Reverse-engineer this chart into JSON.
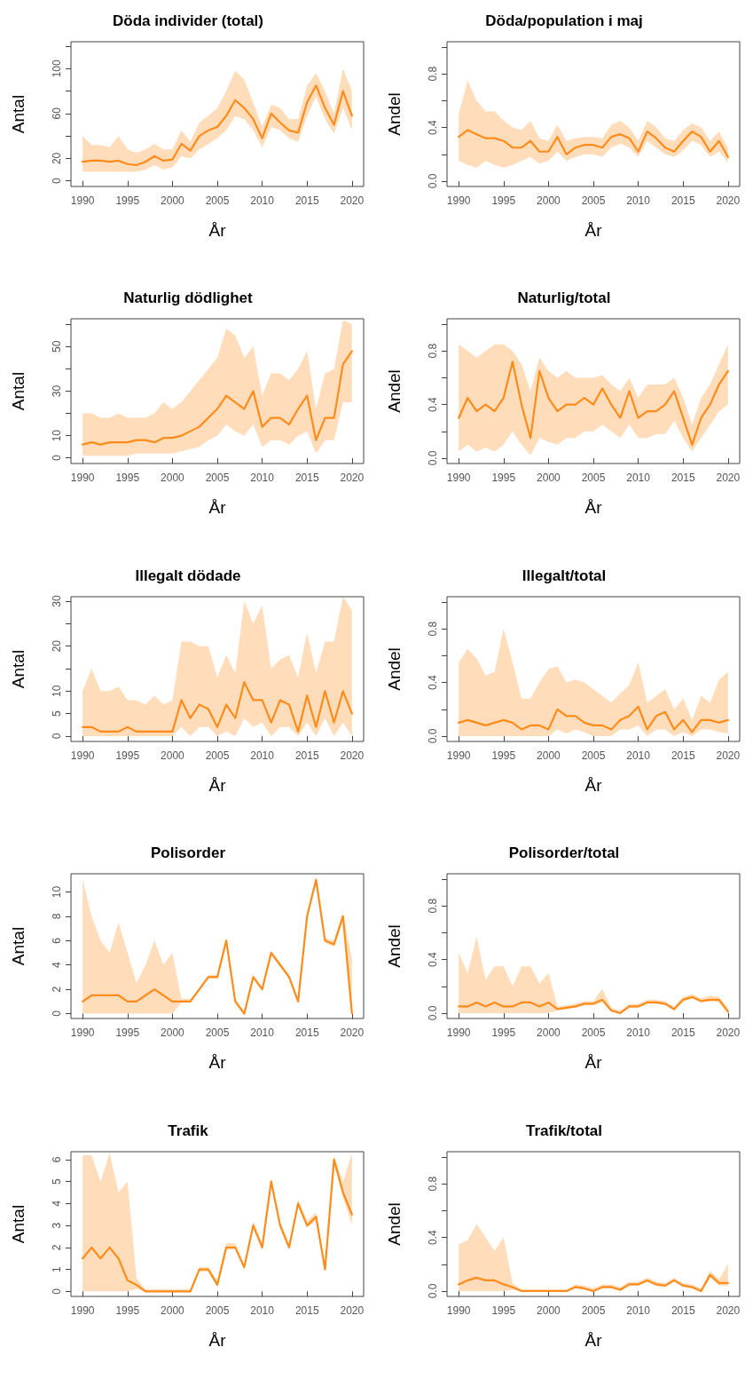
{
  "chart_data": [
    {
      "type": "line",
      "title": "Döda individer (total)",
      "xlabel": "År",
      "ylabel": "Antal",
      "x": [
        1990,
        1991,
        1992,
        1993,
        1994,
        1995,
        1996,
        1997,
        1998,
        1999,
        2000,
        2001,
        2002,
        2003,
        2004,
        2005,
        2006,
        2007,
        2008,
        2009,
        2010,
        2011,
        2012,
        2013,
        2014,
        2015,
        2016,
        2017,
        2018,
        2019,
        2020
      ],
      "xlim": [
        1988.7,
        2021.3
      ],
      "xticks": [
        1990,
        1995,
        2000,
        2005,
        2010,
        2015,
        2020
      ],
      "ylim": [
        -5,
        124
      ],
      "yticks": [
        0,
        20,
        {
          "value": 40,
          "label": null
        },
        60,
        {
          "value": 80,
          "label": null
        },
        100,
        {
          "value": 120,
          "label": null
        }
      ],
      "series": [
        {
          "color": "#ff8c1a",
          "values": [
            17,
            18,
            18,
            17,
            18,
            15,
            14,
            17,
            22,
            18,
            19,
            33,
            27,
            40,
            45,
            48,
            58,
            72,
            65,
            55,
            38,
            60,
            52,
            45,
            43,
            70,
            85,
            65,
            50,
            80,
            58
          ],
          "lower": [
            8,
            8,
            8,
            8,
            8,
            8,
            8,
            10,
            14,
            10,
            12,
            22,
            20,
            28,
            33,
            38,
            45,
            58,
            55,
            45,
            30,
            48,
            45,
            38,
            35,
            58,
            75,
            55,
            42,
            65,
            45
          ],
          "upper": [
            40,
            32,
            32,
            30,
            40,
            28,
            25,
            28,
            33,
            28,
            28,
            45,
            35,
            52,
            58,
            65,
            80,
            98,
            90,
            70,
            48,
            68,
            65,
            55,
            55,
            85,
            96,
            80,
            60,
            100,
            80
          ]
        }
      ]
    },
    {
      "type": "line",
      "title": "Döda/population i maj",
      "xlabel": "År",
      "ylabel": "Andel",
      "x": [
        1990,
        1991,
        1992,
        1993,
        1994,
        1995,
        1996,
        1997,
        1998,
        1999,
        2000,
        2001,
        2002,
        2003,
        2004,
        2005,
        2006,
        2007,
        2008,
        2009,
        2010,
        2011,
        2012,
        2013,
        2014,
        2015,
        2016,
        2017,
        2018,
        2019,
        2020
      ],
      "xlim": [
        1988.7,
        2021.3
      ],
      "xticks": [
        1990,
        1995,
        2000,
        2005,
        2010,
        2015,
        2020
      ],
      "ylim": [
        -0.04,
        1.04
      ],
      "yticks": [
        {
          "value": 0,
          "label": "0.0"
        },
        {
          "value": 0.2,
          "label": null
        },
        0.4,
        {
          "value": 0.6,
          "label": null
        },
        0.8,
        {
          "value": 1,
          "label": null
        }
      ],
      "series": [
        {
          "color": "#ff8c1a",
          "values": [
            0.33,
            0.38,
            0.35,
            0.32,
            0.32,
            0.3,
            0.25,
            0.25,
            0.3,
            0.22,
            0.22,
            0.33,
            0.2,
            0.25,
            0.27,
            0.27,
            0.25,
            0.33,
            0.35,
            0.32,
            0.22,
            0.37,
            0.32,
            0.25,
            0.22,
            0.3,
            0.37,
            0.33,
            0.22,
            0.3,
            0.18
          ],
          "lower": [
            0.15,
            0.12,
            0.1,
            0.15,
            0.12,
            0.1,
            0.12,
            0.15,
            0.18,
            0.13,
            0.15,
            0.22,
            0.15,
            0.18,
            0.2,
            0.2,
            0.18,
            0.25,
            0.28,
            0.25,
            0.18,
            0.3,
            0.25,
            0.2,
            0.18,
            0.23,
            0.3,
            0.27,
            0.18,
            0.22,
            0.14
          ],
          "upper": [
            0.5,
            0.75,
            0.6,
            0.52,
            0.52,
            0.45,
            0.4,
            0.38,
            0.45,
            0.32,
            0.3,
            0.42,
            0.3,
            0.32,
            0.33,
            0.33,
            0.32,
            0.42,
            0.45,
            0.4,
            0.3,
            0.45,
            0.4,
            0.32,
            0.3,
            0.38,
            0.43,
            0.4,
            0.3,
            0.37,
            0.25
          ]
        }
      ]
    },
    {
      "type": "line",
      "title": "Naturlig dödlighet",
      "xlabel": "År",
      "ylabel": "Antal",
      "x": [
        1990,
        1991,
        1992,
        1993,
        1994,
        1995,
        1996,
        1997,
        1998,
        1999,
        2000,
        2001,
        2002,
        2003,
        2004,
        2005,
        2006,
        2007,
        2008,
        2009,
        2010,
        2011,
        2012,
        2013,
        2014,
        2015,
        2016,
        2017,
        2018,
        2019,
        2020
      ],
      "xlim": [
        1988.7,
        2021.3
      ],
      "xticks": [
        1990,
        1995,
        2000,
        2005,
        2010,
        2015,
        2020
      ],
      "ylim": [
        -2.5,
        62.5
      ],
      "yticks": [
        0,
        10,
        {
          "value": 20,
          "label": null
        },
        30,
        {
          "value": 40,
          "label": null
        },
        50,
        {
          "value": 60,
          "label": null
        }
      ],
      "series": [
        {
          "color": "#ff8c1a",
          "values": [
            6,
            7,
            6,
            7,
            7,
            7,
            8,
            8,
            7,
            9,
            9,
            10,
            12,
            14,
            18,
            22,
            28,
            25,
            22,
            30,
            14,
            18,
            18,
            15,
            22,
            28,
            8,
            18,
            18,
            42,
            48
          ],
          "lower": [
            1,
            1,
            1,
            1,
            1,
            1,
            2,
            2,
            2,
            2,
            2,
            3,
            4,
            5,
            8,
            10,
            15,
            12,
            10,
            15,
            5,
            8,
            8,
            6,
            10,
            12,
            2,
            8,
            8,
            25,
            25
          ],
          "upper": [
            20,
            20,
            18,
            18,
            20,
            18,
            18,
            18,
            20,
            25,
            22,
            25,
            30,
            35,
            40,
            45,
            58,
            55,
            45,
            50,
            28,
            38,
            38,
            35,
            40,
            48,
            22,
            38,
            40,
            62,
            60
          ]
        }
      ]
    },
    {
      "type": "line",
      "title": "Naturlig/total",
      "xlabel": "År",
      "ylabel": "Andel",
      "x": [
        1990,
        1991,
        1992,
        1993,
        1994,
        1995,
        1996,
        1997,
        1998,
        1999,
        2000,
        2001,
        2002,
        2003,
        2004,
        2005,
        2006,
        2007,
        2008,
        2009,
        2010,
        2011,
        2012,
        2013,
        2014,
        2015,
        2016,
        2017,
        2018,
        2019,
        2020
      ],
      "xlim": [
        1988.7,
        2021.3
      ],
      "xticks": [
        1990,
        1995,
        2000,
        2005,
        2010,
        2015,
        2020
      ],
      "ylim": [
        -0.04,
        1.04
      ],
      "yticks": [
        {
          "value": 0,
          "label": "0.0"
        },
        {
          "value": 0.2,
          "label": null
        },
        0.4,
        {
          "value": 0.6,
          "label": null
        },
        0.8,
        {
          "value": 1,
          "label": null
        }
      ],
      "series": [
        {
          "color": "#ff8c1a",
          "values": [
            0.3,
            0.45,
            0.35,
            0.4,
            0.35,
            0.45,
            0.72,
            0.4,
            0.15,
            0.65,
            0.45,
            0.35,
            0.4,
            0.4,
            0.45,
            0.4,
            0.52,
            0.4,
            0.3,
            0.5,
            0.3,
            0.35,
            0.35,
            0.4,
            0.5,
            0.3,
            0.1,
            0.3,
            0.4,
            0.55,
            0.65
          ],
          "lower": [
            0.05,
            0.1,
            0.05,
            0.08,
            0.05,
            0.1,
            0.2,
            0.1,
            0.02,
            0.15,
            0.12,
            0.1,
            0.15,
            0.15,
            0.2,
            0.2,
            0.25,
            0.2,
            0.15,
            0.25,
            0.15,
            0.15,
            0.18,
            0.18,
            0.28,
            0.15,
            0.05,
            0.15,
            0.25,
            0.35,
            0.4
          ],
          "upper": [
            0.85,
            0.8,
            0.75,
            0.8,
            0.85,
            0.85,
            0.8,
            0.7,
            0.5,
            0.75,
            0.65,
            0.6,
            0.65,
            0.6,
            0.6,
            0.6,
            0.62,
            0.55,
            0.5,
            0.6,
            0.45,
            0.55,
            0.55,
            0.55,
            0.6,
            0.45,
            0.25,
            0.45,
            0.55,
            0.7,
            0.85
          ]
        }
      ]
    },
    {
      "type": "line",
      "title": "Illegalt dödade",
      "xlabel": "År",
      "ylabel": "Antal",
      "x": [
        1990,
        1991,
        1992,
        1993,
        1994,
        1995,
        1996,
        1997,
        1998,
        1999,
        2000,
        2001,
        2002,
        2003,
        2004,
        2005,
        2006,
        2007,
        2008,
        2009,
        2010,
        2011,
        2012,
        2013,
        2014,
        2015,
        2016,
        2017,
        2018,
        2019,
        2020
      ],
      "xlim": [
        1988.7,
        2021.3
      ],
      "xticks": [
        1990,
        1995,
        2000,
        2005,
        2010,
        2015,
        2020
      ],
      "ylim": [
        -1.2,
        31
      ],
      "yticks": [
        0,
        5,
        10,
        {
          "value": 15,
          "label": null
        },
        20,
        {
          "value": 25,
          "label": null
        },
        30
      ],
      "series": [
        {
          "color": "#ff8c1a",
          "values": [
            2,
            2,
            1,
            1,
            1,
            2,
            1,
            1,
            1,
            1,
            1,
            8,
            4,
            7,
            6,
            2,
            7,
            4,
            12,
            8,
            8,
            3,
            8,
            7,
            1,
            9,
            2,
            10,
            3,
            10,
            5
          ],
          "lower": [
            0,
            0,
            0,
            0,
            0,
            0,
            0,
            0,
            0,
            0,
            0,
            2,
            0,
            2,
            2,
            0,
            1,
            0,
            4,
            2,
            3,
            0,
            2,
            2,
            0,
            3,
            0,
            4,
            0,
            3,
            0
          ],
          "upper": [
            10,
            15,
            10,
            10,
            11,
            8,
            8,
            7,
            9,
            7,
            8,
            21,
            21,
            20,
            20,
            13,
            18,
            14,
            30,
            25,
            29,
            15,
            17,
            18,
            13,
            23,
            14,
            21,
            21,
            31,
            28
          ]
        }
      ]
    },
    {
      "type": "line",
      "title": "Illegalt/total",
      "xlabel": "År",
      "ylabel": "Andel",
      "x": [
        1990,
        1991,
        1992,
        1993,
        1994,
        1995,
        1996,
        1997,
        1998,
        1999,
        2000,
        2001,
        2002,
        2003,
        2004,
        2005,
        2006,
        2007,
        2008,
        2009,
        2010,
        2011,
        2012,
        2013,
        2014,
        2015,
        2016,
        2017,
        2018,
        2019,
        2020
      ],
      "xlim": [
        1988.7,
        2021.3
      ],
      "xticks": [
        1990,
        1995,
        2000,
        2005,
        2010,
        2015,
        2020
      ],
      "ylim": [
        -0.04,
        1.04
      ],
      "yticks": [
        {
          "value": 0,
          "label": "0.0"
        },
        {
          "value": 0.2,
          "label": null
        },
        0.4,
        {
          "value": 0.6,
          "label": null
        },
        0.8,
        {
          "value": 1,
          "label": null
        }
      ],
      "series": [
        {
          "color": "#ff8c1a",
          "values": [
            0.1,
            0.12,
            0.1,
            0.08,
            0.1,
            0.12,
            0.1,
            0.05,
            0.08,
            0.08,
            0.05,
            0.2,
            0.15,
            0.15,
            0.1,
            0.08,
            0.08,
            0.05,
            0.12,
            0.15,
            0.22,
            0.05,
            0.15,
            0.18,
            0.05,
            0.12,
            0.03,
            0.12,
            0.12,
            0.1,
            0.12
          ],
          "lower": [
            0,
            0,
            0,
            0,
            0,
            0,
            0,
            0,
            0,
            0,
            0,
            0.05,
            0.02,
            0.05,
            0.03,
            0,
            0,
            0,
            0.05,
            0.05,
            0.08,
            0,
            0.05,
            0.05,
            0,
            0.03,
            0,
            0.05,
            0.05,
            0.03,
            0.02
          ],
          "upper": [
            0.55,
            0.65,
            0.58,
            0.45,
            0.48,
            0.8,
            0.55,
            0.28,
            0.28,
            0.4,
            0.5,
            0.52,
            0.4,
            0.42,
            0.4,
            0.35,
            0.3,
            0.25,
            0.32,
            0.38,
            0.55,
            0.25,
            0.3,
            0.35,
            0.2,
            0.28,
            0.12,
            0.3,
            0.25,
            0.42,
            0.48
          ]
        }
      ]
    },
    {
      "type": "line",
      "title": "Polisorder",
      "xlabel": "År",
      "ylabel": "Antal",
      "x": [
        1990,
        1991,
        1992,
        1993,
        1994,
        1995,
        1996,
        1997,
        1998,
        1999,
        2000,
        2001,
        2002,
        2003,
        2004,
        2005,
        2006,
        2007,
        2008,
        2009,
        2010,
        2011,
        2012,
        2013,
        2014,
        2015,
        2016,
        2017,
        2018,
        2019,
        2020
      ],
      "xlim": [
        1988.7,
        2021.3
      ],
      "xticks": [
        1990,
        1995,
        2000,
        2005,
        2010,
        2015,
        2020
      ],
      "ylim": [
        -0.4,
        11.5
      ],
      "yticks": [
        0,
        2,
        4,
        6,
        8,
        10
      ],
      "series": [
        {
          "color": "#ff8c1a",
          "values": [
            1,
            1.5,
            1.5,
            1.5,
            1.5,
            1,
            1,
            1.5,
            2,
            1.5,
            1,
            1,
            1,
            2,
            3,
            3,
            6,
            1,
            0,
            3,
            2,
            5,
            4,
            3,
            1,
            8,
            11,
            6,
            5.7,
            8,
            0
          ],
          "lower": [
            0,
            0,
            0,
            0,
            0,
            0,
            0,
            0,
            0,
            0,
            0,
            0.9,
            0.9,
            1.9,
            2.9,
            2.9,
            5.8,
            0.9,
            0,
            2.9,
            1.9,
            4.8,
            3.9,
            2.9,
            0.9,
            7.8,
            10.8,
            5.8,
            5.5,
            7.7,
            0
          ],
          "upper": [
            11,
            8,
            6,
            5,
            7.5,
            5,
            2.5,
            4,
            6,
            4,
            5,
            1.2,
            1.2,
            2.1,
            3.2,
            3.2,
            6.2,
            1.2,
            0.2,
            3.2,
            2.2,
            5.2,
            4.2,
            3.2,
            1.2,
            8.2,
            11.2,
            6.2,
            6,
            8.3,
            4.5
          ]
        }
      ]
    },
    {
      "type": "line",
      "title": "Polisorder/total",
      "xlabel": "År",
      "ylabel": "Andel",
      "x": [
        1990,
        1991,
        1992,
        1993,
        1994,
        1995,
        1996,
        1997,
        1998,
        1999,
        2000,
        2001,
        2002,
        2003,
        2004,
        2005,
        2006,
        2007,
        2008,
        2009,
        2010,
        2011,
        2012,
        2013,
        2014,
        2015,
        2016,
        2017,
        2018,
        2019,
        2020
      ],
      "xlim": [
        1988.7,
        2021.3
      ],
      "xticks": [
        1990,
        1995,
        2000,
        2005,
        2010,
        2015,
        2020
      ],
      "ylim": [
        -0.04,
        1.04
      ],
      "yticks": [
        {
          "value": 0,
          "label": "0.0"
        },
        {
          "value": 0.2,
          "label": null
        },
        0.4,
        {
          "value": 0.6,
          "label": null
        },
        0.8,
        {
          "value": 1,
          "label": null
        }
      ],
      "series": [
        {
          "color": "#ff8c1a",
          "values": [
            0.05,
            0.05,
            0.08,
            0.05,
            0.08,
            0.05,
            0.05,
            0.08,
            0.08,
            0.05,
            0.08,
            0.03,
            0.04,
            0.05,
            0.07,
            0.07,
            0.1,
            0.02,
            0,
            0.05,
            0.05,
            0.08,
            0.08,
            0.07,
            0.03,
            0.1,
            0.12,
            0.09,
            0.1,
            0.1,
            0.01
          ],
          "lower": [
            0,
            0,
            0,
            0,
            0,
            0,
            0,
            0,
            0,
            0,
            0,
            0.02,
            0.03,
            0.04,
            0.06,
            0.06,
            0.08,
            0.01,
            0,
            0.04,
            0.04,
            0.07,
            0.07,
            0.06,
            0.02,
            0.09,
            0.11,
            0.08,
            0.09,
            0.08,
            0
          ],
          "upper": [
            0.45,
            0.3,
            0.57,
            0.25,
            0.35,
            0.35,
            0.2,
            0.35,
            0.35,
            0.22,
            0.3,
            0.05,
            0.06,
            0.07,
            0.09,
            0.09,
            0.18,
            0.04,
            0.02,
            0.07,
            0.07,
            0.1,
            0.1,
            0.09,
            0.05,
            0.12,
            0.14,
            0.11,
            0.13,
            0.12,
            0.04
          ]
        }
      ]
    },
    {
      "type": "line",
      "title": "Trafik",
      "xlabel": "År",
      "ylabel": "Antal",
      "x": [
        1990,
        1991,
        1992,
        1993,
        1994,
        1995,
        1996,
        1997,
        1998,
        1999,
        2000,
        2001,
        2002,
        2003,
        2004,
        2005,
        2006,
        2007,
        2008,
        2009,
        2010,
        2011,
        2012,
        2013,
        2014,
        2015,
        2016,
        2017,
        2018,
        2019,
        2020
      ],
      "xlim": [
        1988.7,
        2021.3
      ],
      "xticks": [
        1990,
        1995,
        2000,
        2005,
        2010,
        2015,
        2020
      ],
      "ylim": [
        -0.23,
        6.36
      ],
      "yticks": [
        0,
        1,
        2,
        3,
        4,
        5,
        6
      ],
      "series": [
        {
          "color": "#ff8c1a",
          "values": [
            1.5,
            2,
            1.5,
            2,
            1.5,
            0.5,
            0.3,
            0,
            0,
            0,
            0,
            0,
            0,
            1,
            1,
            0.3,
            2,
            2,
            1.1,
            3,
            2,
            5,
            3,
            2,
            4,
            3,
            3.4,
            1,
            6,
            4.5,
            3.5
          ],
          "lower": [
            0,
            0,
            0,
            0,
            0,
            0,
            0.1,
            0,
            0,
            0,
            0,
            0,
            0,
            0.9,
            0.9,
            0.2,
            1.9,
            1.9,
            1,
            2.9,
            1.9,
            4.9,
            2.9,
            1.9,
            3.9,
            2.9,
            3.2,
            0.9,
            5.9,
            4.3,
            3
          ],
          "upper": [
            6.2,
            6.2,
            5,
            6.3,
            4.5,
            5,
            0.6,
            0.1,
            0.1,
            0.1,
            0.1,
            0.1,
            0.1,
            1.1,
            1.1,
            0.5,
            2.2,
            2.2,
            1.2,
            3.2,
            2.2,
            5.2,
            3.2,
            2.2,
            4.2,
            3.2,
            3.6,
            1.2,
            6.2,
            5,
            6.3
          ]
        }
      ]
    },
    {
      "type": "line",
      "title": "Trafik/total",
      "xlabel": "År",
      "ylabel": "Andel",
      "x": [
        1990,
        1991,
        1992,
        1993,
        1994,
        1995,
        1996,
        1997,
        1998,
        1999,
        2000,
        2001,
        2002,
        2003,
        2004,
        2005,
        2006,
        2007,
        2008,
        2009,
        2010,
        2011,
        2012,
        2013,
        2014,
        2015,
        2016,
        2017,
        2018,
        2019,
        2020
      ],
      "xlim": [
        1988.7,
        2021.3
      ],
      "xticks": [
        1990,
        1995,
        2000,
        2005,
        2010,
        2015,
        2020
      ],
      "ylim": [
        -0.04,
        1.04
      ],
      "yticks": [
        {
          "value": 0,
          "label": "0.0"
        },
        {
          "value": 0.2,
          "label": null
        },
        0.4,
        {
          "value": 0.6,
          "label": null
        },
        0.8,
        {
          "value": 1,
          "label": null
        }
      ],
      "series": [
        {
          "color": "#ff8c1a",
          "values": [
            0.05,
            0.08,
            0.1,
            0.08,
            0.08,
            0.05,
            0.03,
            0,
            0,
            0,
            0,
            0,
            0,
            0.03,
            0.02,
            0,
            0.03,
            0.03,
            0.01,
            0.05,
            0.05,
            0.08,
            0.05,
            0.04,
            0.08,
            0.04,
            0.03,
            0,
            0.12,
            0.06,
            0.06
          ],
          "lower": [
            0,
            0,
            0,
            0,
            0,
            0,
            0.01,
            0,
            0,
            0,
            0,
            0,
            0,
            0.02,
            0.01,
            0,
            0.02,
            0.02,
            0,
            0.04,
            0.04,
            0.07,
            0.04,
            0.03,
            0.07,
            0.03,
            0.02,
            0,
            0.1,
            0.04,
            0.04
          ],
          "upper": [
            0.35,
            0.38,
            0.5,
            0.4,
            0.3,
            0.4,
            0.06,
            0.01,
            0.01,
            0.01,
            0.01,
            0.01,
            0.01,
            0.05,
            0.04,
            0.02,
            0.05,
            0.05,
            0.03,
            0.07,
            0.07,
            0.1,
            0.07,
            0.06,
            0.1,
            0.06,
            0.05,
            0.02,
            0.15,
            0.09,
            0.2
          ]
        }
      ]
    }
  ]
}
